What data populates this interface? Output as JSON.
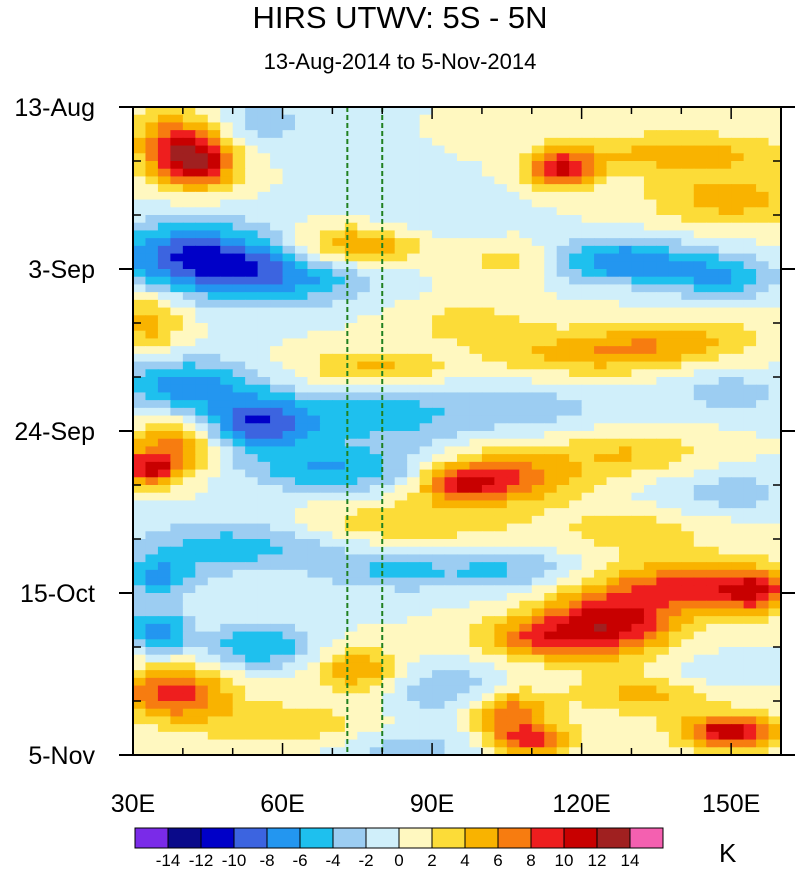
{
  "chart_data": {
    "type": "heatmap",
    "title": "HIRS UTWV: 5S - 5N",
    "subtitle": "13-Aug-2014 to 5-Nov-2014",
    "x_axis": {
      "label": "",
      "range": [
        30,
        160
      ],
      "unit": "degrees east longitude",
      "major_ticks": [
        {
          "value": 30,
          "label": "30E"
        },
        {
          "value": 60,
          "label": "60E"
        },
        {
          "value": 90,
          "label": "90E"
        },
        {
          "value": 120,
          "label": "120E"
        },
        {
          "value": 150,
          "label": "150E"
        }
      ],
      "minor_step": 10
    },
    "y_axis": {
      "label": "",
      "range_days": [
        0,
        84
      ],
      "direction": "top-to-bottom",
      "unit": "days since 13-Aug-2014",
      "major_ticks": [
        {
          "value": 0,
          "label": "13-Aug"
        },
        {
          "value": 21,
          "label": "3-Sep"
        },
        {
          "value": 42,
          "label": "24-Sep"
        },
        {
          "value": 63,
          "label": "15-Oct"
        },
        {
          "value": 84,
          "label": "5-Nov"
        }
      ],
      "minor_step_days": 7
    },
    "colorbar": {
      "unit": "K",
      "levels": [
        -14,
        -12,
        -10,
        -8,
        -6,
        -4,
        -2,
        0,
        2,
        4,
        6,
        8,
        10,
        12,
        14
      ],
      "colors": [
        "#7a2be8",
        "#0a0a8a",
        "#0000c8",
        "#3c64e0",
        "#2396f0",
        "#1ec0ee",
        "#9ccdf2",
        "#d0effa",
        "#fff8c0",
        "#fcdc38",
        "#f9b300",
        "#f77c10",
        "#ee1e1e",
        "#c80000",
        "#a02020",
        "#f460b0"
      ]
    },
    "reference_lines": [
      {
        "x": 73,
        "color": "#208020",
        "style": "dashed"
      },
      {
        "x": 80,
        "color": "#208020",
        "style": "dashed"
      }
    ],
    "grid_spec": {
      "lon_start": 30,
      "lon_end": 160,
      "lon_step": 2.5,
      "day_start": 0,
      "day_end": 84,
      "day_step": 1
    },
    "features": [
      {
        "lon": 43,
        "day": 7,
        "amp": 11,
        "slon": 6,
        "sday": 2.5
      },
      {
        "lon": 38,
        "day": 4,
        "amp": 6,
        "slon": 6,
        "sday": 3
      },
      {
        "lon": 116,
        "day": 8,
        "amp": 10,
        "slon": 5,
        "sday": 1.8
      },
      {
        "lon": 140,
        "day": 6,
        "amp": 5,
        "slon": 15,
        "sday": 2
      },
      {
        "lon": 150,
        "day": 12,
        "amp": 5,
        "slon": 12,
        "sday": 2.5
      },
      {
        "lon": 75,
        "day": 18,
        "amp": 7,
        "slon": 9,
        "sday": 2
      },
      {
        "lon": 105,
        "day": 20,
        "amp": 3,
        "slon": 8,
        "sday": 2
      },
      {
        "lon": 55,
        "day": 2,
        "amp": -3,
        "slon": 8,
        "sday": 3
      },
      {
        "lon": 42,
        "day": 19,
        "amp": -9,
        "slon": 12,
        "sday": 3
      },
      {
        "lon": 58,
        "day": 22,
        "amp": -7,
        "slon": 14,
        "sday": 2.5
      },
      {
        "lon": 128,
        "day": 20,
        "amp": -8,
        "slon": 10,
        "sday": 2
      },
      {
        "lon": 148,
        "day": 22,
        "amp": -6,
        "slon": 8,
        "sday": 2
      },
      {
        "lon": 88,
        "day": 14,
        "amp": -2,
        "slon": 12,
        "sday": 3
      },
      {
        "lon": 33,
        "day": 28,
        "amp": 5,
        "slon": 5,
        "sday": 3
      },
      {
        "lon": 78,
        "day": 34,
        "amp": 5,
        "slon": 10,
        "sday": 1.8
      },
      {
        "lon": 122,
        "day": 32,
        "amp": 5,
        "slon": 14,
        "sday": 2
      },
      {
        "lon": 140,
        "day": 30,
        "amp": 4,
        "slon": 12,
        "sday": 2
      },
      {
        "lon": 98,
        "day": 28,
        "amp": 3,
        "slon": 10,
        "sday": 2
      },
      {
        "lon": 40,
        "day": 36,
        "amp": -7,
        "slon": 10,
        "sday": 2.5
      },
      {
        "lon": 55,
        "day": 41,
        "amp": -9,
        "slon": 8,
        "sday": 2.5
      },
      {
        "lon": 80,
        "day": 40,
        "amp": -5,
        "slon": 14,
        "sday": 3
      },
      {
        "lon": 110,
        "day": 39,
        "amp": -3,
        "slon": 10,
        "sday": 2
      },
      {
        "lon": 150,
        "day": 37,
        "amp": -3,
        "slon": 10,
        "sday": 2
      },
      {
        "lon": 38,
        "day": 44,
        "amp": 7,
        "slon": 6,
        "sday": 2.5
      },
      {
        "lon": 33,
        "day": 47,
        "amp": 9,
        "slon": 4,
        "sday": 1.5
      },
      {
        "lon": 105,
        "day": 48,
        "amp": 8,
        "slon": 10,
        "sday": 2.5
      },
      {
        "lon": 95,
        "day": 49,
        "amp": 7,
        "slon": 5,
        "sday": 1.5
      },
      {
        "lon": 130,
        "day": 45,
        "amp": 4,
        "slon": 10,
        "sday": 2
      },
      {
        "lon": 70,
        "day": 47,
        "amp": -6,
        "slon": 12,
        "sday": 2
      },
      {
        "lon": 150,
        "day": 50,
        "amp": -3,
        "slon": 10,
        "sday": 2
      },
      {
        "lon": 85,
        "day": 54,
        "amp": 4,
        "slon": 14,
        "sday": 2
      },
      {
        "lon": 130,
        "day": 55,
        "amp": 3,
        "slon": 12,
        "sday": 2
      },
      {
        "lon": 50,
        "day": 57,
        "amp": -5,
        "slon": 14,
        "sday": 2.5
      },
      {
        "lon": 105,
        "day": 60,
        "amp": -4,
        "slon": 10,
        "sday": 2
      },
      {
        "lon": 35,
        "day": 61,
        "amp": -6,
        "slon": 5,
        "sday": 2
      },
      {
        "lon": 82,
        "day": 60,
        "amp": -4,
        "slon": 10,
        "sday": 2
      },
      {
        "lon": 125,
        "day": 67,
        "amp": 11,
        "slon": 10,
        "sday": 3
      },
      {
        "lon": 142,
        "day": 62,
        "amp": 8,
        "slon": 12,
        "sday": 2.5
      },
      {
        "lon": 155,
        "day": 63,
        "amp": 7,
        "slon": 5,
        "sday": 2
      },
      {
        "lon": 110,
        "day": 69,
        "amp": 6,
        "slon": 8,
        "sday": 2
      },
      {
        "lon": 35,
        "day": 68,
        "amp": -8,
        "slon": 4,
        "sday": 2
      },
      {
        "lon": 55,
        "day": 70,
        "amp": -6,
        "slon": 8,
        "sday": 2
      },
      {
        "lon": 38,
        "day": 76,
        "amp": 9,
        "slon": 8,
        "sday": 2.5
      },
      {
        "lon": 75,
        "day": 73,
        "amp": 6,
        "slon": 6,
        "sday": 2
      },
      {
        "lon": 105,
        "day": 78,
        "amp": 8,
        "slon": 6,
        "sday": 2
      },
      {
        "lon": 110,
        "day": 82,
        "amp": 9,
        "slon": 6,
        "sday": 1.5
      },
      {
        "lon": 150,
        "day": 81,
        "amp": 12,
        "slon": 7,
        "sday": 1.5
      },
      {
        "lon": 135,
        "day": 76,
        "amp": 5,
        "slon": 12,
        "sday": 2
      },
      {
        "lon": 60,
        "day": 80,
        "amp": 4,
        "slon": 12,
        "sday": 2
      },
      {
        "lon": 95,
        "day": 76,
        "amp": -4,
        "slon": 10,
        "sday": 2.5
      },
      {
        "lon": 85,
        "day": 83,
        "amp": -3,
        "slon": 10,
        "sday": 1.5
      },
      {
        "lon": 145,
        "day": 74,
        "amp": -3,
        "slon": 8,
        "sday": 2
      }
    ]
  }
}
